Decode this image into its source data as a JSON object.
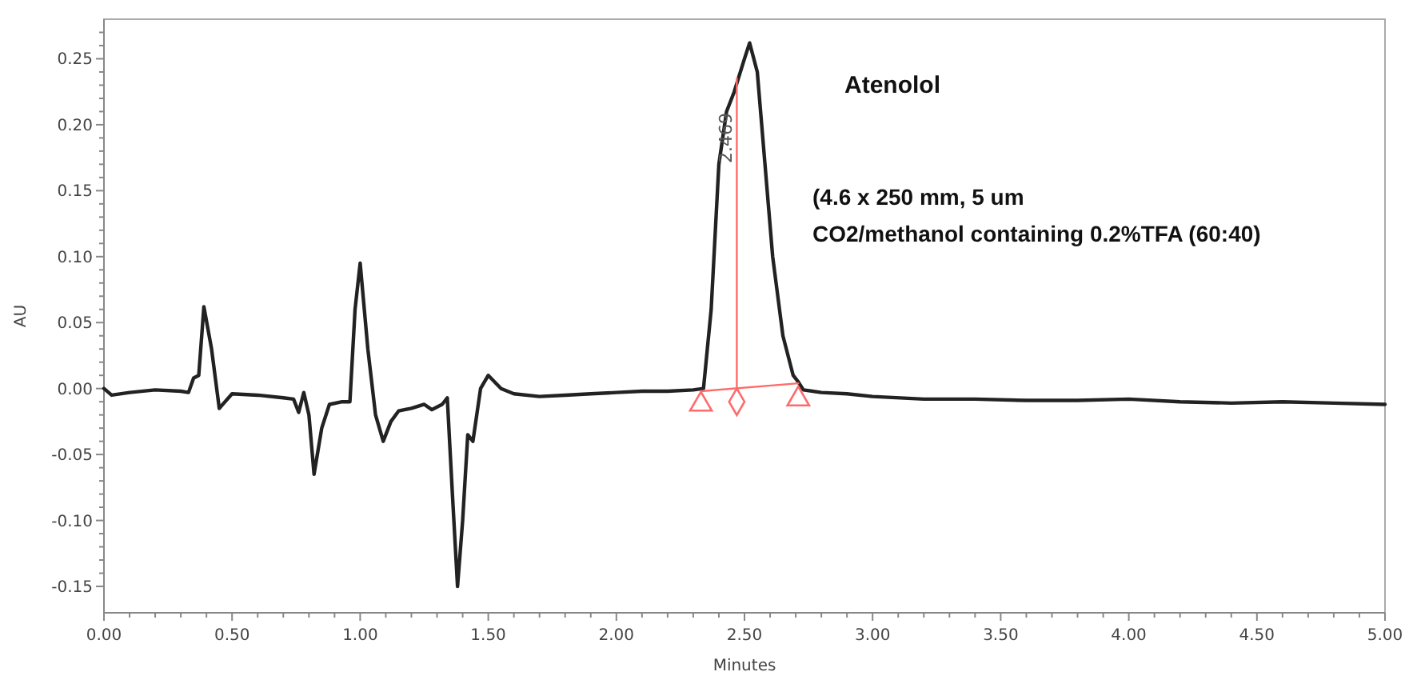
{
  "chart_data": {
    "type": "line",
    "xlabel": "Minutes",
    "ylabel": "AU",
    "xlim": [
      0,
      5
    ],
    "ylim": [
      -0.17,
      0.28
    ],
    "xticks": [
      {
        "value": 0,
        "label": "0.00"
      },
      {
        "value": 0.1,
        "label": null
      },
      {
        "value": 0.2,
        "label": null
      },
      {
        "value": 0.3,
        "label": null
      },
      {
        "value": 0.4,
        "label": null
      },
      {
        "value": 0.5,
        "label": "0.50"
      },
      {
        "value": 0.6,
        "label": null
      },
      {
        "value": 0.7,
        "label": null
      },
      {
        "value": 0.8,
        "label": null
      },
      {
        "value": 0.9,
        "label": null
      },
      {
        "value": 1,
        "label": "1.00"
      },
      {
        "value": 1.1,
        "label": null
      },
      {
        "value": 1.2,
        "label": null
      },
      {
        "value": 1.3,
        "label": null
      },
      {
        "value": 1.4,
        "label": null
      },
      {
        "value": 1.5,
        "label": "1.50"
      },
      {
        "value": 1.6,
        "label": null
      },
      {
        "value": 1.7,
        "label": null
      },
      {
        "value": 1.8,
        "label": null
      },
      {
        "value": 1.9,
        "label": null
      },
      {
        "value": 2,
        "label": "2.00"
      },
      {
        "value": 2.1,
        "label": null
      },
      {
        "value": 2.2,
        "label": null
      },
      {
        "value": 2.3,
        "label": null
      },
      {
        "value": 2.4,
        "label": null
      },
      {
        "value": 2.5,
        "label": "2.50"
      },
      {
        "value": 2.6,
        "label": null
      },
      {
        "value": 2.7,
        "label": null
      },
      {
        "value": 2.8,
        "label": null
      },
      {
        "value": 2.9,
        "label": null
      },
      {
        "value": 3,
        "label": "3.00"
      },
      {
        "value": 3.1,
        "label": null
      },
      {
        "value": 3.2,
        "label": null
      },
      {
        "value": 3.3,
        "label": null
      },
      {
        "value": 3.4,
        "label": null
      },
      {
        "value": 3.5,
        "label": "3.50"
      },
      {
        "value": 3.6,
        "label": null
      },
      {
        "value": 3.7,
        "label": null
      },
      {
        "value": 3.8,
        "label": null
      },
      {
        "value": 3.9,
        "label": null
      },
      {
        "value": 4,
        "label": "4.00"
      },
      {
        "value": 4.1,
        "label": null
      },
      {
        "value": 4.2,
        "label": null
      },
      {
        "value": 4.3,
        "label": null
      },
      {
        "value": 4.4,
        "label": null
      },
      {
        "value": 4.5,
        "label": "4.50"
      },
      {
        "value": 4.6,
        "label": null
      },
      {
        "value": 4.7,
        "label": null
      },
      {
        "value": 4.8,
        "label": null
      },
      {
        "value": 4.9,
        "label": null
      },
      {
        "value": 5,
        "label": "5.00"
      }
    ],
    "yticks": [
      {
        "value": -0.15,
        "label": "-0.15"
      },
      {
        "value": -0.14,
        "label": null
      },
      {
        "value": -0.13,
        "label": null
      },
      {
        "value": -0.12,
        "label": null
      },
      {
        "value": -0.11,
        "label": null
      },
      {
        "value": -0.1,
        "label": "-0.10"
      },
      {
        "value": -0.09,
        "label": null
      },
      {
        "value": -0.08,
        "label": null
      },
      {
        "value": -0.07,
        "label": null
      },
      {
        "value": -0.06,
        "label": null
      },
      {
        "value": -0.05,
        "label": "-0.05"
      },
      {
        "value": -0.04,
        "label": null
      },
      {
        "value": -0.03,
        "label": null
      },
      {
        "value": -0.02,
        "label": null
      },
      {
        "value": -0.01,
        "label": null
      },
      {
        "value": 0,
        "label": "0.00"
      },
      {
        "value": 0.01,
        "label": null
      },
      {
        "value": 0.02,
        "label": null
      },
      {
        "value": 0.03,
        "label": null
      },
      {
        "value": 0.04,
        "label": null
      },
      {
        "value": 0.05,
        "label": "0.05"
      },
      {
        "value": 0.06,
        "label": null
      },
      {
        "value": 0.07,
        "label": null
      },
      {
        "value": 0.08,
        "label": null
      },
      {
        "value": 0.09,
        "label": null
      },
      {
        "value": 0.1,
        "label": "0.10"
      },
      {
        "value": 0.11,
        "label": null
      },
      {
        "value": 0.12,
        "label": null
      },
      {
        "value": 0.13,
        "label": null
      },
      {
        "value": 0.14,
        "label": null
      },
      {
        "value": 0.15,
        "label": "0.15"
      },
      {
        "value": 0.16,
        "label": null
      },
      {
        "value": 0.17,
        "label": null
      },
      {
        "value": 0.18,
        "label": null
      },
      {
        "value": 0.19,
        "label": null
      },
      {
        "value": 0.2,
        "label": "0.20"
      },
      {
        "value": 0.21,
        "label": null
      },
      {
        "value": 0.22,
        "label": null
      },
      {
        "value": 0.23,
        "label": null
      },
      {
        "value": 0.24,
        "label": null
      },
      {
        "value": 0.25,
        "label": "0.25"
      },
      {
        "value": 0.26,
        "label": null
      },
      {
        "value": 0.27,
        "label": null
      }
    ],
    "grid": false,
    "annotations": [
      "Atenolol",
      "(4.6 x 250 mm, 5 um",
      "CO2/methanol containing 0.2%TFA (60:40)",
      {
        "text": "2.469",
        "x": 2.47,
        "y": 0.19
      }
    ],
    "series": [
      {
        "color": "#222222",
        "marker": "none",
        "x": [
          0,
          0.03,
          0.1,
          0.2,
          0.3,
          0.33,
          0.35,
          0.37,
          0.39,
          0.42,
          0.45,
          0.5,
          0.6,
          0.7,
          0.74,
          0.76,
          0.78,
          0.8,
          0.82,
          0.85,
          0.88,
          0.93,
          0.96,
          0.98,
          1,
          1.03,
          1.06,
          1.09,
          1.12,
          1.15,
          1.2,
          1.25,
          1.28,
          1.32,
          1.34,
          1.36,
          1.38,
          1.4,
          1.42,
          1.44,
          1.47,
          1.5,
          1.55,
          1.6,
          1.7,
          1.8,
          1.9,
          2,
          2.1,
          2.2,
          2.3,
          2.34,
          2.37,
          2.4,
          2.43,
          2.46,
          2.5,
          2.52,
          2.55,
          2.58,
          2.61,
          2.65,
          2.69,
          2.71,
          2.73,
          2.8,
          2.9,
          3,
          3.2,
          3.4,
          3.6,
          3.8,
          4,
          4.2,
          4.4,
          4.6,
          4.8,
          5
        ],
        "values": [
          0,
          -0.005,
          -0.003,
          -0.001,
          -0.002,
          -0.003,
          0.008,
          0.01,
          0.062,
          0.03,
          -0.015,
          -0.004,
          -0.005,
          -0.007,
          -0.008,
          -0.018,
          -0.003,
          -0.02,
          -0.065,
          -0.03,
          -0.012,
          -0.01,
          -0.01,
          0.06,
          0.095,
          0.03,
          -0.02,
          -0.04,
          -0.025,
          -0.017,
          -0.015,
          -0.012,
          -0.016,
          -0.012,
          -0.007,
          -0.08,
          -0.15,
          -0.1,
          -0.035,
          -0.04,
          0,
          0.01,
          0,
          -0.004,
          -0.006,
          -0.005,
          -0.004,
          -0.003,
          -0.002,
          -0.002,
          -0.001,
          0,
          0.06,
          0.17,
          0.21,
          0.225,
          0.25,
          0.262,
          0.24,
          0.17,
          0.1,
          0.04,
          0.01,
          0.005,
          -0.001,
          -0.003,
          -0.004,
          -0.006,
          -0.008,
          -0.008,
          -0.009,
          -0.009,
          -0.008,
          -0.01,
          -0.011,
          -0.01,
          -0.011,
          -0.012
        ]
      },
      {
        "type": "line",
        "color": "#ff6b6b",
        "marker": "none",
        "x": [
          2.33,
          2.71
        ],
        "values": [
          -0.002,
          0.004
        ]
      },
      {
        "type": "line",
        "color": "#ff6b6b",
        "marker": "none",
        "x": [
          2.47,
          2.47
        ],
        "values": [
          -0.001,
          0.235
        ]
      },
      {
        "type": "scatter",
        "color": "#ff6b6b",
        "marker": "triangle",
        "x": [
          2.33,
          2.71
        ],
        "values": [
          -0.012,
          -0.008
        ]
      },
      {
        "type": "scatter",
        "color": "#ff6b6b",
        "marker": "diamond",
        "x": [
          2.47
        ],
        "values": [
          -0.01
        ]
      }
    ]
  }
}
